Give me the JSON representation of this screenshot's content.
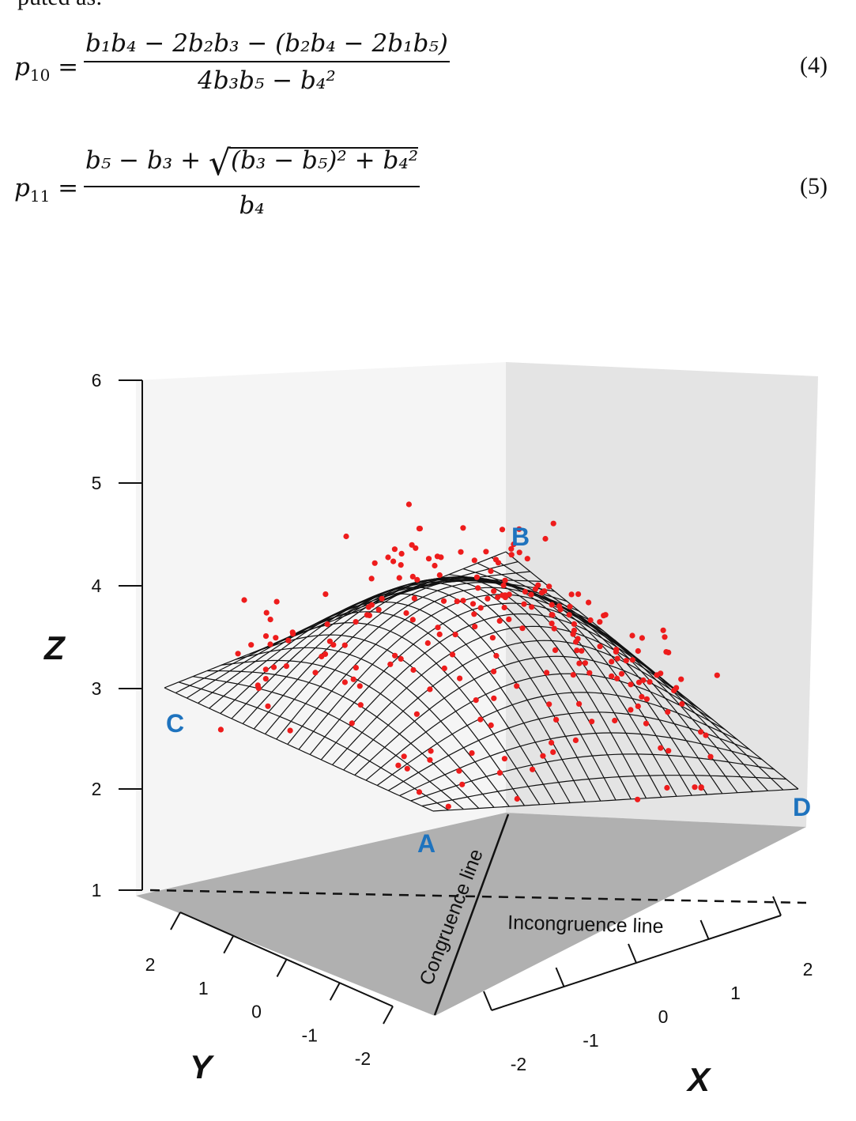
{
  "intro_text": "puted as:",
  "equation4": {
    "lhs": "p",
    "lhs_sub": "10",
    "num_text": "b₁b₄ − 2b₂b₃ − (b₂b₄ − 2b₁b₅)",
    "den_text": "4b₃b₅ − b₄²",
    "number": "(4)"
  },
  "equation5": {
    "lhs": "p",
    "lhs_sub": "11",
    "num_prefix": "b₅ − b₃ + ",
    "num_sqrt": "(b₃ − b₅)² + b₄²",
    "den_text": "b₄",
    "number": "(5)"
  },
  "figure": {
    "z_axis_label": "Z",
    "x_axis_label": "X",
    "y_axis_label": "Y",
    "z_ticks": [
      "6",
      "5",
      "4",
      "3",
      "2",
      "1"
    ],
    "x_ticks": [
      "-2",
      "-1",
      "0",
      "1",
      "2"
    ],
    "y_ticks": [
      "2",
      "1",
      "0",
      "-1",
      "-2"
    ],
    "corner_labels": {
      "A": "A",
      "B": "B",
      "C": "C",
      "D": "D"
    },
    "congruence_line_label": "Congruence line",
    "incongruence_line_label": "Incongruence line",
    "colors": {
      "points": "#ee1c1c",
      "corner_labels": "#1e73be",
      "floor": "#b0b0b0",
      "back_left": "#f5f5f5",
      "back_right": "#e4e4e4",
      "mesh": "#111111"
    }
  }
}
